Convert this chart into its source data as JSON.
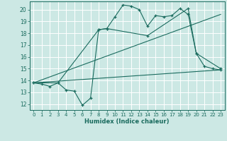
{
  "xlabel": "Humidex (Indice chaleur)",
  "bg_color": "#cce8e4",
  "line_color": "#1a6b5e",
  "grid_color": "#ffffff",
  "xlim": [
    -0.5,
    23.5
  ],
  "ylim": [
    11.5,
    20.7
  ],
  "yticks": [
    12,
    13,
    14,
    15,
    16,
    17,
    18,
    19,
    20
  ],
  "xticks": [
    0,
    1,
    2,
    3,
    4,
    5,
    6,
    7,
    8,
    9,
    10,
    11,
    12,
    13,
    14,
    15,
    16,
    17,
    18,
    19,
    20,
    21,
    22,
    23
  ],
  "series": [
    {
      "x": [
        0,
        1,
        2,
        3,
        4,
        5,
        6,
        7,
        8,
        9,
        10,
        11,
        12,
        13,
        14,
        15,
        16,
        17,
        18,
        19,
        20,
        21,
        22,
        23
      ],
      "y": [
        13.8,
        13.7,
        13.5,
        13.8,
        13.2,
        13.1,
        11.9,
        12.5,
        18.3,
        18.4,
        19.4,
        20.4,
        20.3,
        20.0,
        18.6,
        19.5,
        19.4,
        19.5,
        20.1,
        19.6,
        16.3,
        15.2,
        15.0,
        14.9
      ],
      "marker": true
    },
    {
      "x": [
        0,
        3,
        8,
        9,
        14,
        19,
        20,
        23
      ],
      "y": [
        13.8,
        13.8,
        18.3,
        18.4,
        17.8,
        20.1,
        16.3,
        15.0
      ],
      "marker": true
    },
    {
      "x": [
        0,
        23
      ],
      "y": [
        13.8,
        19.6
      ],
      "marker": false
    },
    {
      "x": [
        0,
        23
      ],
      "y": [
        13.8,
        14.9
      ],
      "marker": false
    }
  ]
}
